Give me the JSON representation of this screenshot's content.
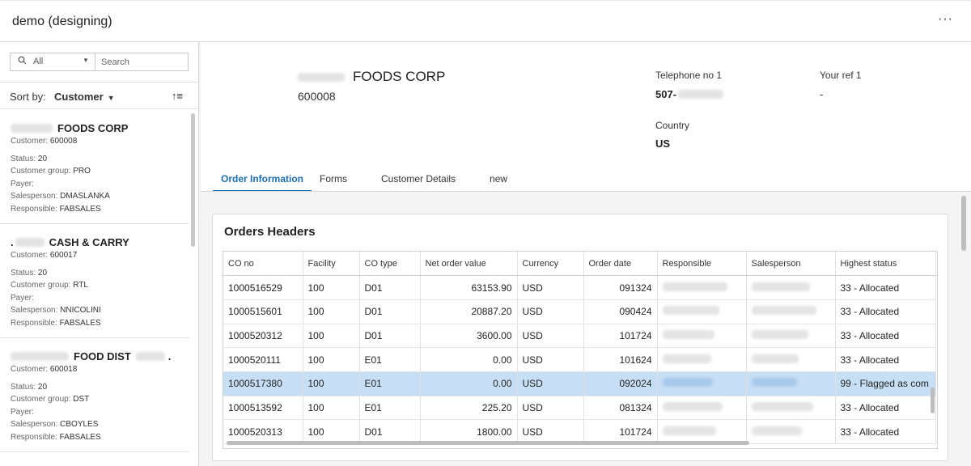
{
  "app": {
    "title": "demo (designing)",
    "more": "···"
  },
  "sidebar": {
    "filter_value": "All",
    "search_placeholder": "Search",
    "sort_label": "Sort by:",
    "sort_value": "Customer",
    "customers": [
      {
        "name": "FOODS CORP",
        "customer_label": "Customer:",
        "customer": "600008",
        "status_label": "Status:",
        "status": "20",
        "group_label": "Customer group:",
        "group": "PRO",
        "payer_label": "Payer:",
        "payer": "",
        "salesperson_label": "Salesperson:",
        "salesperson": "DMASLANKA",
        "responsible_label": "Responsible:",
        "responsible": "FABSALES"
      },
      {
        "name": "CASH & CARRY",
        "customer_label": "Customer:",
        "customer": "600017",
        "status_label": "Status:",
        "status": "20",
        "group_label": "Customer group:",
        "group": "RTL",
        "payer_label": "Payer:",
        "payer": "",
        "salesperson_label": "Salesperson:",
        "salesperson": "NNICOLINI",
        "responsible_label": "Responsible:",
        "responsible": "FABSALES"
      },
      {
        "name": "FOOD DIST",
        "customer_label": "Customer:",
        "customer": "600018",
        "status_label": "Status:",
        "status": "20",
        "group_label": "Customer group:",
        "group": "DST",
        "payer_label": "Payer:",
        "payer": "",
        "salesperson_label": "Salesperson:",
        "salesperson": "CBOYLES",
        "responsible_label": "Responsible:",
        "responsible": "FABSALES"
      }
    ]
  },
  "header": {
    "name": "FOODS CORP",
    "number": "600008",
    "phone_label": "Telephone no 1",
    "phone_value": "507-",
    "ref_label": "Your ref 1",
    "ref_value": "-",
    "country_label": "Country",
    "country_value": "US"
  },
  "tabs": [
    "Order Information",
    "Forms",
    "Customer Details",
    "new"
  ],
  "orders": {
    "title": "Orders Headers",
    "columns": [
      "CO no",
      "Facility",
      "CO type",
      "Net order value",
      "Currency",
      "Order date",
      "Responsible",
      "Salesperson",
      "Highest status"
    ],
    "rows": [
      [
        "1000516529",
        "100",
        "D01",
        "63153.90",
        "USD",
        "091324",
        "",
        "",
        "33 - Allocated"
      ],
      [
        "1000515601",
        "100",
        "D01",
        "20887.20",
        "USD",
        "090424",
        "",
        "",
        "33 - Allocated"
      ],
      [
        "1000520312",
        "100",
        "D01",
        "3600.00",
        "USD",
        "101724",
        "",
        "",
        "33 - Allocated"
      ],
      [
        "1000520111",
        "100",
        "E01",
        "0.00",
        "USD",
        "101624",
        "",
        "",
        "33 - Allocated"
      ],
      [
        "1000517380",
        "100",
        "E01",
        "0.00",
        "USD",
        "092024",
        "",
        "",
        "99 - Flagged as com"
      ],
      [
        "1000513592",
        "100",
        "E01",
        "225.20",
        "USD",
        "081324",
        "",
        "",
        "33 - Allocated"
      ],
      [
        "1000520313",
        "100",
        "D01",
        "1800.00",
        "USD",
        "101724",
        "",
        "",
        "33 - Allocated"
      ]
    ],
    "selected_row": 4
  }
}
